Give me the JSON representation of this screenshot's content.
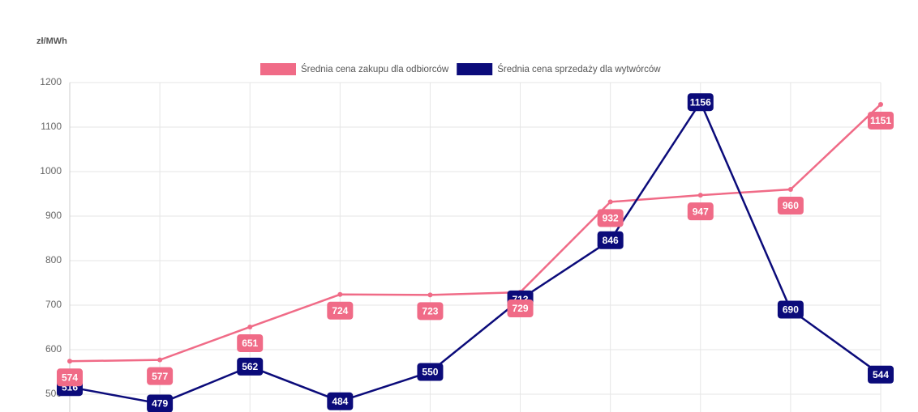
{
  "chart_data": {
    "type": "line",
    "y_label": "zł/MWh",
    "categories": [
      null,
      null,
      null,
      null,
      null,
      null,
      null,
      null,
      null,
      null
    ],
    "series": [
      {
        "name": "Średnia cena zakupu dla odbiorców",
        "color": "#f06b87",
        "values": [
          574,
          577,
          651,
          724,
          723,
          729,
          932,
          947,
          960,
          1151
        ]
      },
      {
        "name": "Średnia cena sprzedaży dla wytwórców",
        "color": "#0b0b7a",
        "values": [
          516,
          479,
          562,
          484,
          550,
          713,
          846,
          1156,
          690,
          544
        ]
      }
    ],
    "ylim": [
      460,
      1200
    ],
    "yticks": [
      500,
      600,
      700,
      800,
      900,
      1000,
      1100,
      1200
    ],
    "grid": true,
    "legend": "top"
  }
}
